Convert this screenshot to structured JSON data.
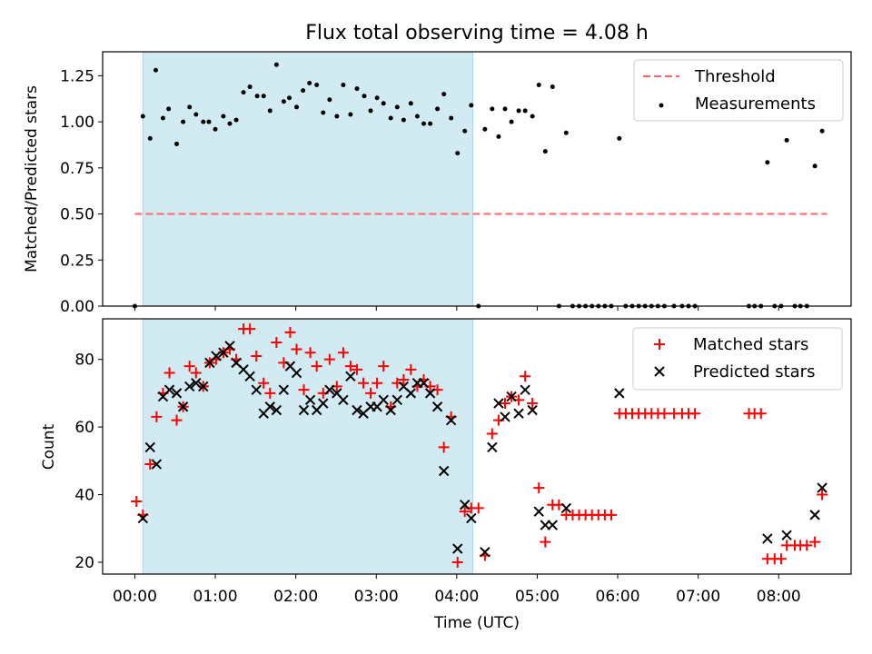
{
  "figure": {
    "title": "Flux total observing time = 4.08 h",
    "xlabel": "Time (UTC)",
    "x_tick_labels": [
      "00:00",
      "01:00",
      "02:00",
      "03:00",
      "04:00",
      "05:00",
      "06:00",
      "07:00",
      "08:00"
    ]
  },
  "colors": {
    "threshold": "#ff6666",
    "measurements": "#000000",
    "matched": "#ff0000",
    "predicted": "#000000",
    "shade": "#add8e6"
  },
  "chart_data": [
    {
      "type": "scatter",
      "panel": "top",
      "ylabel": "Matched/Predicted stars",
      "xlim": [
        -0.4,
        8.9
      ],
      "ylim": [
        0,
        1.38
      ],
      "yticks": [
        0.0,
        0.25,
        0.5,
        0.75,
        1.0,
        1.25
      ],
      "ytick_labels": [
        "0.00",
        "0.25",
        "0.50",
        "0.75",
        "1.00",
        "1.25"
      ],
      "shaded_interval": [
        0.1,
        4.2
      ],
      "legend": {
        "placement": "top-right",
        "entries": [
          "Threshold",
          "Measurements"
        ]
      },
      "series": [
        {
          "name": "Threshold",
          "kind": "dashed-line",
          "x": [
            0.0,
            8.6
          ],
          "y": [
            0.5,
            0.5
          ]
        },
        {
          "name": "Measurements",
          "kind": "points",
          "points": [
            [
              0.0,
              0.0
            ],
            [
              0.1,
              1.03
            ],
            [
              0.19,
              0.91
            ],
            [
              0.26,
              1.28
            ],
            [
              0.35,
              1.02
            ],
            [
              0.42,
              1.07
            ],
            [
              0.52,
              0.88
            ],
            [
              0.6,
              1.0
            ],
            [
              0.68,
              1.08
            ],
            [
              0.76,
              1.04
            ],
            [
              0.85,
              1.0
            ],
            [
              0.92,
              1.0
            ],
            [
              1.0,
              0.96
            ],
            [
              1.1,
              1.03
            ],
            [
              1.18,
              0.99
            ],
            [
              1.26,
              1.01
            ],
            [
              1.35,
              1.16
            ],
            [
              1.43,
              1.19
            ],
            [
              1.52,
              1.14
            ],
            [
              1.6,
              1.14
            ],
            [
              1.68,
              1.06
            ],
            [
              1.76,
              1.31
            ],
            [
              1.85,
              1.11
            ],
            [
              1.92,
              1.13
            ],
            [
              2.01,
              1.08
            ],
            [
              2.09,
              1.17
            ],
            [
              2.17,
              1.21
            ],
            [
              2.26,
              1.2
            ],
            [
              2.34,
              1.05
            ],
            [
              2.42,
              1.12
            ],
            [
              2.51,
              1.03
            ],
            [
              2.59,
              1.2
            ],
            [
              2.68,
              1.04
            ],
            [
              2.76,
              1.18
            ],
            [
              2.85,
              1.14
            ],
            [
              2.93,
              1.06
            ],
            [
              3.01,
              1.13
            ],
            [
              3.09,
              1.1
            ],
            [
              3.18,
              1.02
            ],
            [
              3.26,
              1.08
            ],
            [
              3.34,
              1.01
            ],
            [
              3.43,
              1.1
            ],
            [
              3.51,
              1.03
            ],
            [
              3.59,
              0.99
            ],
            [
              3.67,
              0.99
            ],
            [
              3.76,
              1.07
            ],
            [
              3.84,
              1.15
            ],
            [
              3.93,
              1.02
            ],
            [
              4.01,
              0.83
            ],
            [
              4.1,
              0.95
            ],
            [
              4.18,
              1.09
            ],
            [
              4.27,
              0.0
            ],
            [
              4.35,
              0.96
            ],
            [
              4.44,
              1.07
            ],
            [
              4.52,
              0.92
            ],
            [
              4.6,
              1.07
            ],
            [
              4.68,
              1.0
            ],
            [
              4.77,
              1.06
            ],
            [
              4.85,
              1.06
            ],
            [
              4.94,
              1.03
            ],
            [
              5.02,
              1.2
            ],
            [
              5.1,
              0.84
            ],
            [
              5.19,
              1.19
            ],
            [
              5.27,
              0.0
            ],
            [
              5.36,
              0.94
            ],
            [
              5.44,
              0.0
            ],
            [
              5.52,
              0.0
            ],
            [
              5.6,
              0.0
            ],
            [
              5.68,
              0.0
            ],
            [
              5.76,
              0.0
            ],
            [
              5.84,
              0.0
            ],
            [
              5.92,
              0.0
            ],
            [
              6.02,
              0.91
            ],
            [
              6.1,
              0.0
            ],
            [
              6.18,
              0.0
            ],
            [
              6.26,
              0.0
            ],
            [
              6.34,
              0.0
            ],
            [
              6.42,
              0.0
            ],
            [
              6.5,
              0.0
            ],
            [
              6.58,
              0.0
            ],
            [
              6.7,
              0.0
            ],
            [
              6.8,
              0.0
            ],
            [
              6.88,
              0.0
            ],
            [
              6.96,
              0.0
            ],
            [
              7.63,
              0.0
            ],
            [
              7.7,
              0.0
            ],
            [
              7.78,
              0.0
            ],
            [
              7.86,
              0.78
            ],
            [
              7.95,
              0.0
            ],
            [
              8.03,
              0.0
            ],
            [
              8.1,
              0.9
            ],
            [
              8.2,
              0.0
            ],
            [
              8.27,
              0.0
            ],
            [
              8.35,
              0.0
            ],
            [
              8.45,
              0.76
            ],
            [
              8.54,
              0.95
            ]
          ]
        }
      ]
    },
    {
      "type": "scatter",
      "panel": "bottom",
      "ylabel": "Count",
      "xlim": [
        -0.4,
        8.9
      ],
      "ylim": [
        16.5,
        92
      ],
      "yticks": [
        20,
        40,
        60,
        80
      ],
      "ytick_labels": [
        "20",
        "40",
        "60",
        "80"
      ],
      "shaded_interval": [
        0.1,
        4.2
      ],
      "legend": {
        "placement": "top-right",
        "entries": [
          "Matched stars",
          "Predicted stars"
        ]
      },
      "series": [
        {
          "name": "Matched stars",
          "kind": "plus",
          "points": [
            [
              0.02,
              38
            ],
            [
              0.1,
              34
            ],
            [
              0.19,
              49
            ],
            [
              0.27,
              63
            ],
            [
              0.35,
              70
            ],
            [
              0.43,
              76
            ],
            [
              0.52,
              62
            ],
            [
              0.6,
              66
            ],
            [
              0.68,
              78
            ],
            [
              0.76,
              76
            ],
            [
              0.85,
              72
            ],
            [
              0.93,
              79
            ],
            [
              1.01,
              80
            ],
            [
              1.1,
              82
            ],
            [
              1.18,
              83
            ],
            [
              1.26,
              80
            ],
            [
              1.35,
              89
            ],
            [
              1.43,
              89
            ],
            [
              1.51,
              81
            ],
            [
              1.6,
              73
            ],
            [
              1.68,
              70
            ],
            [
              1.76,
              85
            ],
            [
              1.85,
              79
            ],
            [
              1.93,
              88
            ],
            [
              2.01,
              83
            ],
            [
              2.1,
              71
            ],
            [
              2.18,
              82
            ],
            [
              2.26,
              78
            ],
            [
              2.34,
              70
            ],
            [
              2.42,
              80
            ],
            [
              2.51,
              72
            ],
            [
              2.59,
              82
            ],
            [
              2.68,
              78
            ],
            [
              2.76,
              77
            ],
            [
              2.84,
              73
            ],
            [
              2.93,
              70
            ],
            [
              3.01,
              73
            ],
            [
              3.09,
              78
            ],
            [
              3.18,
              66
            ],
            [
              3.26,
              73
            ],
            [
              3.34,
              74
            ],
            [
              3.43,
              77
            ],
            [
              3.51,
              72
            ],
            [
              3.59,
              74
            ],
            [
              3.67,
              72
            ],
            [
              3.76,
              71
            ],
            [
              3.84,
              54
            ],
            [
              3.93,
              63
            ],
            [
              4.01,
              20
            ],
            [
              4.1,
              35
            ],
            [
              4.18,
              36
            ],
            [
              4.27,
              36
            ],
            [
              4.35,
              22
            ],
            [
              4.44,
              58
            ],
            [
              4.52,
              62
            ],
            [
              4.6,
              67
            ],
            [
              4.68,
              69
            ],
            [
              4.77,
              68
            ],
            [
              4.85,
              75
            ],
            [
              4.94,
              67
            ],
            [
              5.02,
              42
            ],
            [
              5.1,
              26
            ],
            [
              5.19,
              37
            ],
            [
              5.27,
              37
            ],
            [
              5.36,
              34
            ],
            [
              5.44,
              34
            ],
            [
              5.52,
              34
            ],
            [
              5.6,
              34
            ],
            [
              5.68,
              34
            ],
            [
              5.76,
              34
            ],
            [
              5.84,
              34
            ],
            [
              5.92,
              34
            ],
            [
              6.02,
              64
            ],
            [
              6.1,
              64
            ],
            [
              6.18,
              64
            ],
            [
              6.26,
              64
            ],
            [
              6.34,
              64
            ],
            [
              6.42,
              64
            ],
            [
              6.5,
              64
            ],
            [
              6.58,
              64
            ],
            [
              6.7,
              64
            ],
            [
              6.8,
              64
            ],
            [
              6.88,
              64
            ],
            [
              6.96,
              64
            ],
            [
              7.63,
              64
            ],
            [
              7.7,
              64
            ],
            [
              7.78,
              64
            ],
            [
              7.86,
              21
            ],
            [
              7.95,
              21
            ],
            [
              8.03,
              21
            ],
            [
              8.1,
              25
            ],
            [
              8.2,
              25
            ],
            [
              8.27,
              25
            ],
            [
              8.35,
              25
            ],
            [
              8.45,
              26
            ],
            [
              8.54,
              40
            ]
          ]
        },
        {
          "name": "Predicted stars",
          "kind": "x",
          "points": [
            [
              0.1,
              33
            ],
            [
              0.19,
              54
            ],
            [
              0.27,
              49
            ],
            [
              0.35,
              69
            ],
            [
              0.43,
              71
            ],
            [
              0.52,
              70
            ],
            [
              0.6,
              66
            ],
            [
              0.68,
              72
            ],
            [
              0.76,
              73
            ],
            [
              0.85,
              72
            ],
            [
              0.93,
              79
            ],
            [
              1.01,
              81
            ],
            [
              1.1,
              82
            ],
            [
              1.18,
              84
            ],
            [
              1.26,
              79
            ],
            [
              1.35,
              77
            ],
            [
              1.43,
              75
            ],
            [
              1.51,
              71
            ],
            [
              1.6,
              64
            ],
            [
              1.68,
              66
            ],
            [
              1.76,
              65
            ],
            [
              1.85,
              71
            ],
            [
              1.93,
              78
            ],
            [
              2.01,
              76
            ],
            [
              2.1,
              65
            ],
            [
              2.18,
              68
            ],
            [
              2.26,
              65
            ],
            [
              2.34,
              67
            ],
            [
              2.42,
              71
            ],
            [
              2.51,
              70
            ],
            [
              2.59,
              68
            ],
            [
              2.68,
              75
            ],
            [
              2.76,
              65
            ],
            [
              2.84,
              64
            ],
            [
              2.93,
              66
            ],
            [
              3.01,
              66
            ],
            [
              3.09,
              68
            ],
            [
              3.18,
              65
            ],
            [
              3.26,
              68
            ],
            [
              3.34,
              72
            ],
            [
              3.43,
              70
            ],
            [
              3.51,
              73
            ],
            [
              3.59,
              73
            ],
            [
              3.67,
              70
            ],
            [
              3.76,
              66
            ],
            [
              3.84,
              47
            ],
            [
              3.93,
              62
            ],
            [
              4.01,
              24
            ],
            [
              4.1,
              37
            ],
            [
              4.18,
              33
            ],
            [
              4.35,
              23
            ],
            [
              4.44,
              54
            ],
            [
              4.52,
              67
            ],
            [
              4.6,
              63
            ],
            [
              4.68,
              69
            ],
            [
              4.77,
              64
            ],
            [
              4.85,
              71
            ],
            [
              4.94,
              65
            ],
            [
              5.02,
              35
            ],
            [
              5.1,
              31
            ],
            [
              5.19,
              31
            ],
            [
              5.36,
              36
            ],
            [
              6.02,
              70
            ],
            [
              7.86,
              27
            ],
            [
              8.1,
              28
            ],
            [
              8.45,
              34
            ],
            [
              8.54,
              42
            ]
          ]
        }
      ]
    }
  ]
}
